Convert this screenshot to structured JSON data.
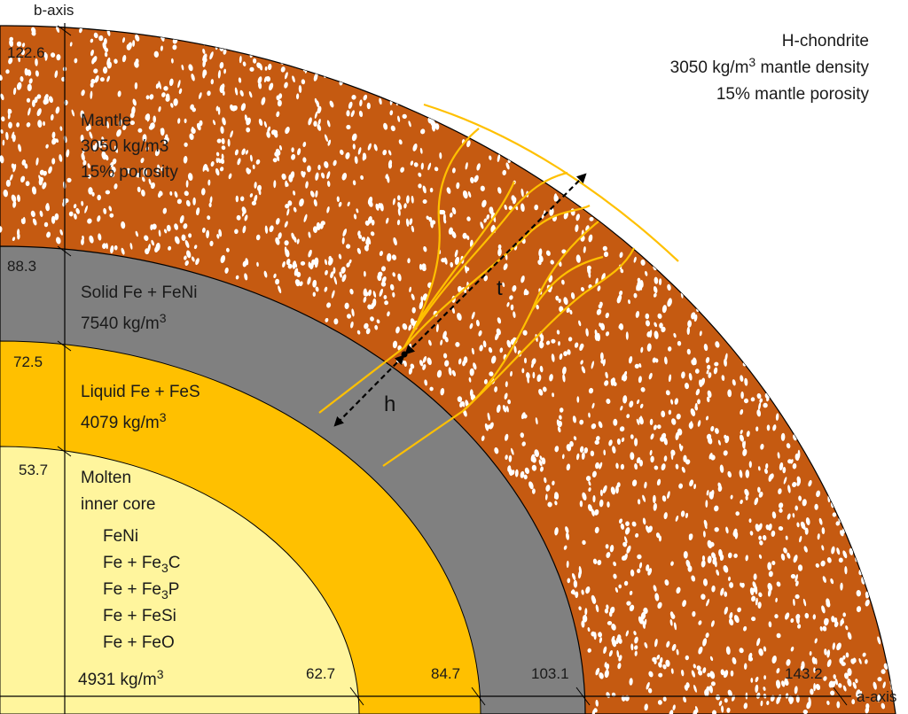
{
  "axes": {
    "b_axis_label": "b-axis",
    "a_axis_label": "a-axis"
  },
  "info": {
    "line1": "H-chondrite",
    "line2_prefix": "3050 kg/m",
    "line2_sup": "3",
    "line2_suffix": " mantle density",
    "line3": "15% mantle porosity"
  },
  "layers": {
    "mantle": {
      "name": "Mantle",
      "density": "3050 kg/m3",
      "porosity": "15% porosity",
      "color": "#c55a11",
      "b_radius": "122.6",
      "a_radius": "143.2"
    },
    "solid": {
      "name": "Solid Fe + FeNi",
      "density_prefix": "7540 kg/m",
      "density_sup": "3",
      "color": "#808080",
      "b_radius": "88.3",
      "a_radius": "103.1"
    },
    "liquid": {
      "name": "Liquid Fe + FeS",
      "density_prefix": "4079 kg/m",
      "density_sup": "3",
      "color": "#ffc000",
      "b_radius": "72.5",
      "a_radius": "84.7"
    },
    "inner": {
      "name_line1": "Molten",
      "name_line2": "inner core",
      "components": [
        {
          "base": "FeNi",
          "sub": "",
          "tail": ""
        },
        {
          "base": "Fe + Fe",
          "sub": "3",
          "tail": "C"
        },
        {
          "base": "Fe + Fe",
          "sub": "3",
          "tail": "P"
        },
        {
          "base": "Fe + FeSi",
          "sub": "",
          "tail": ""
        },
        {
          "base": "Fe + FeO",
          "sub": "",
          "tail": ""
        }
      ],
      "density_prefix": "4931 kg/m",
      "density_sup": "3",
      "color": "#fff59d",
      "b_radius": "53.7",
      "a_radius": "62.7"
    }
  },
  "dimensions": {
    "t_label": "t",
    "h_label": "h"
  },
  "colors": {
    "vein": "#ffc000",
    "pores": "#ffffff"
  }
}
